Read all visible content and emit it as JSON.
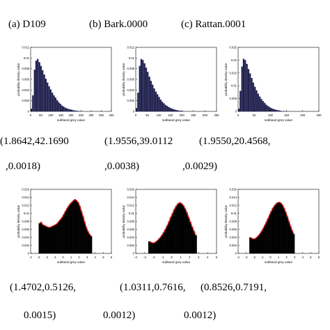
{
  "captions": [
    "(a) D109",
    "(b) Bark.0000",
    "(c) Rattan.0001"
  ],
  "params_top": [
    {
      "line1": "(1.8642,42.1690",
      "line2": ",0.0018)"
    },
    {
      "line1": "(1.9556,39.0112",
      "line2": ",0.0038)"
    },
    {
      "line1": "(1.9550,20.4568,",
      "line2": ",0.0029)"
    }
  ],
  "params_bottom": [
    {
      "line1": "(1.4702,0.5126,",
      "line2": "0.0015)"
    },
    {
      "line1": "(1.0311,0.7616,",
      "line2": "0.0012)"
    },
    {
      "line1": "(0.8526,0.7191,",
      "line2": "0.0012)"
    }
  ],
  "colors": {
    "bar_top": "#1a1a40",
    "bar_bottom": "#000000",
    "fit": "#e8201c"
  },
  "chart_data": [
    {
      "type": "bar",
      "title": "",
      "xlabel": "subband grey value",
      "ylabel": "probability density value",
      "xlim": [
        0,
        400
      ],
      "ylim": [
        0,
        0.012
      ],
      "xticks": [
        0,
        50,
        100,
        150,
        200,
        250,
        300,
        350,
        400
      ],
      "yticks": [
        0,
        0.002,
        0.004,
        0.006,
        0.008,
        0.01,
        0.012
      ],
      "ytick_labels": [
        "0",
        "0.002",
        "0.004",
        "0.006",
        "0.008",
        "0.01",
        "0.012"
      ],
      "fit": false,
      "bins": [
        {
          "x": 0,
          "y": 0.0005
        },
        {
          "x": 8,
          "y": 0.003
        },
        {
          "x": 16,
          "y": 0.0078
        },
        {
          "x": 24,
          "y": 0.0095
        },
        {
          "x": 32,
          "y": 0.0098
        },
        {
          "x": 40,
          "y": 0.0092
        },
        {
          "x": 48,
          "y": 0.0085
        },
        {
          "x": 56,
          "y": 0.0077
        },
        {
          "x": 64,
          "y": 0.0069
        },
        {
          "x": 72,
          "y": 0.0061
        },
        {
          "x": 80,
          "y": 0.0054
        },
        {
          "x": 88,
          "y": 0.0047
        },
        {
          "x": 96,
          "y": 0.0041
        },
        {
          "x": 104,
          "y": 0.0035
        },
        {
          "x": 112,
          "y": 0.003
        },
        {
          "x": 120,
          "y": 0.0026
        },
        {
          "x": 128,
          "y": 0.0021
        },
        {
          "x": 136,
          "y": 0.0017
        },
        {
          "x": 144,
          "y": 0.0014
        },
        {
          "x": 152,
          "y": 0.0011
        },
        {
          "x": 160,
          "y": 0.0009
        },
        {
          "x": 168,
          "y": 0.0007
        },
        {
          "x": 176,
          "y": 0.00055
        },
        {
          "x": 184,
          "y": 0.00045
        },
        {
          "x": 192,
          "y": 0.00035
        },
        {
          "x": 200,
          "y": 0.00028
        },
        {
          "x": 208,
          "y": 0.0002
        },
        {
          "x": 216,
          "y": 0.00015
        },
        {
          "x": 224,
          "y": 0.0001
        },
        {
          "x": 232,
          "y": 7e-05
        },
        {
          "x": 240,
          "y": 5e-05
        },
        {
          "x": 250,
          "y": 3e-05
        }
      ]
    },
    {
      "type": "bar",
      "title": "",
      "xlabel": "subband grey value",
      "ylabel": "probability density value",
      "xlim": [
        0,
        350
      ],
      "ylim": [
        0,
        0.012
      ],
      "xticks": [
        0,
        50,
        100,
        150,
        200,
        250,
        300,
        350
      ],
      "yticks": [
        0,
        0.002,
        0.004,
        0.006,
        0.008,
        0.01,
        0.012
      ],
      "ytick_labels": [
        "0",
        "0.002",
        "0.004",
        "0.006",
        "0.008",
        "0.01",
        "0.012"
      ],
      "fit": false,
      "bins": [
        {
          "x": 0,
          "y": 0.0006
        },
        {
          "x": 7,
          "y": 0.0035
        },
        {
          "x": 14,
          "y": 0.0085
        },
        {
          "x": 21,
          "y": 0.0098
        },
        {
          "x": 28,
          "y": 0.0096
        },
        {
          "x": 35,
          "y": 0.009
        },
        {
          "x": 42,
          "y": 0.0082
        },
        {
          "x": 49,
          "y": 0.0074
        },
        {
          "x": 56,
          "y": 0.0065
        },
        {
          "x": 63,
          "y": 0.0057
        },
        {
          "x": 70,
          "y": 0.005
        },
        {
          "x": 77,
          "y": 0.0043
        },
        {
          "x": 84,
          "y": 0.0037
        },
        {
          "x": 91,
          "y": 0.0032
        },
        {
          "x": 98,
          "y": 0.0027
        },
        {
          "x": 105,
          "y": 0.0022
        },
        {
          "x": 112,
          "y": 0.0018
        },
        {
          "x": 119,
          "y": 0.0015
        },
        {
          "x": 126,
          "y": 0.0012
        },
        {
          "x": 133,
          "y": 0.001
        },
        {
          "x": 140,
          "y": 0.0008
        },
        {
          "x": 147,
          "y": 0.00065
        },
        {
          "x": 154,
          "y": 0.0005
        },
        {
          "x": 161,
          "y": 0.0004
        },
        {
          "x": 168,
          "y": 0.0003
        },
        {
          "x": 175,
          "y": 0.00022
        },
        {
          "x": 182,
          "y": 0.00016
        },
        {
          "x": 189,
          "y": 0.00011
        },
        {
          "x": 196,
          "y": 8e-05
        },
        {
          "x": 203,
          "y": 5e-05
        }
      ]
    },
    {
      "type": "bar",
      "title": "",
      "xlabel": "subband grey value",
      "ylabel": "probability density value",
      "xlim": [
        0,
        250
      ],
      "ylim": [
        0,
        0.025
      ],
      "xticks": [
        0,
        50,
        100,
        150,
        200,
        250
      ],
      "yticks": [
        0,
        0.005,
        0.01,
        0.015,
        0.02,
        0.025
      ],
      "ytick_labels": [
        "0",
        "0.005",
        "0.01",
        "0.015",
        "0.02",
        "0.025"
      ],
      "fit": false,
      "bins": [
        {
          "x": 0,
          "y": 0.001
        },
        {
          "x": 5,
          "y": 0.008
        },
        {
          "x": 10,
          "y": 0.0175
        },
        {
          "x": 15,
          "y": 0.0205
        },
        {
          "x": 20,
          "y": 0.02
        },
        {
          "x": 25,
          "y": 0.0185
        },
        {
          "x": 30,
          "y": 0.0165
        },
        {
          "x": 35,
          "y": 0.0148
        },
        {
          "x": 40,
          "y": 0.013
        },
        {
          "x": 45,
          "y": 0.0112
        },
        {
          "x": 50,
          "y": 0.0096
        },
        {
          "x": 55,
          "y": 0.0082
        },
        {
          "x": 60,
          "y": 0.0069
        },
        {
          "x": 65,
          "y": 0.0058
        },
        {
          "x": 70,
          "y": 0.0048
        },
        {
          "x": 75,
          "y": 0.004
        },
        {
          "x": 80,
          "y": 0.0033
        },
        {
          "x": 85,
          "y": 0.0026
        },
        {
          "x": 90,
          "y": 0.0021
        },
        {
          "x": 95,
          "y": 0.0017
        },
        {
          "x": 100,
          "y": 0.0013
        },
        {
          "x": 105,
          "y": 0.001
        },
        {
          "x": 110,
          "y": 0.0008
        },
        {
          "x": 115,
          "y": 0.0006
        },
        {
          "x": 120,
          "y": 0.00045
        },
        {
          "x": 125,
          "y": 0.00035
        },
        {
          "x": 130,
          "y": 0.00025
        },
        {
          "x": 140,
          "y": 0.00015
        },
        {
          "x": 150,
          "y": 8e-05
        },
        {
          "x": 160,
          "y": 4e-05
        }
      ]
    },
    {
      "type": "bar",
      "title": "",
      "xlabel": "subband grey value",
      "ylabel": "probability density value",
      "xlim": [
        -4,
        6
      ],
      "ylim": [
        0,
        0.016
      ],
      "xticks": [
        -4,
        -3,
        -2,
        -1,
        0,
        1,
        2,
        3,
        4,
        5,
        6
      ],
      "yticks": [
        0,
        0.002,
        0.004,
        0.006,
        0.008,
        0.01,
        0.012,
        0.014,
        0.016
      ],
      "ytick_labels": [
        "0",
        "0.002",
        "0.004",
        "0.006",
        "0.008",
        "0.01",
        "0.012",
        "0.014",
        "0.016"
      ],
      "fit": true,
      "bins": [
        {
          "x": -3.0,
          "y": 0.0075
        },
        {
          "x": -2.8,
          "y": 0.0078
        },
        {
          "x": -2.6,
          "y": 0.0072
        },
        {
          "x": -2.4,
          "y": 0.007
        },
        {
          "x": -2.2,
          "y": 0.0068
        },
        {
          "x": -2.0,
          "y": 0.0066
        },
        {
          "x": -1.8,
          "y": 0.0065
        },
        {
          "x": -1.6,
          "y": 0.0066
        },
        {
          "x": -1.4,
          "y": 0.0068
        },
        {
          "x": -1.2,
          "y": 0.007
        },
        {
          "x": -1.0,
          "y": 0.0072
        },
        {
          "x": -0.8,
          "y": 0.0075
        },
        {
          "x": -0.6,
          "y": 0.008
        },
        {
          "x": -0.4,
          "y": 0.0085
        },
        {
          "x": -0.2,
          "y": 0.009
        },
        {
          "x": 0.0,
          "y": 0.0097
        },
        {
          "x": 0.2,
          "y": 0.0105
        },
        {
          "x": 0.4,
          "y": 0.0112
        },
        {
          "x": 0.6,
          "y": 0.0118
        },
        {
          "x": 0.8,
          "y": 0.0124
        },
        {
          "x": 1.0,
          "y": 0.0128
        },
        {
          "x": 1.2,
          "y": 0.0132
        },
        {
          "x": 1.4,
          "y": 0.0135
        },
        {
          "x": 1.6,
          "y": 0.0132
        },
        {
          "x": 1.8,
          "y": 0.0127
        },
        {
          "x": 2.0,
          "y": 0.0118
        },
        {
          "x": 2.2,
          "y": 0.0105
        },
        {
          "x": 2.4,
          "y": 0.0092
        },
        {
          "x": 2.6,
          "y": 0.0078
        },
        {
          "x": 2.8,
          "y": 0.0065
        },
        {
          "x": 3.0,
          "y": 0.0055
        },
        {
          "x": 3.2,
          "y": 0.0048
        },
        {
          "x": 3.4,
          "y": 0.0043
        }
      ]
    },
    {
      "type": "bar",
      "title": "",
      "xlabel": "subband grey value",
      "ylabel": "probability density value",
      "xlim": [
        -4,
        5
      ],
      "ylim": [
        0,
        0.016
      ],
      "xticks": [
        -4,
        -3,
        -2,
        -1,
        0,
        1,
        2,
        3,
        4,
        5
      ],
      "yticks": [
        0,
        0.002,
        0.004,
        0.006,
        0.008,
        0.01,
        0.012,
        0.014,
        0.016
      ],
      "ytick_labels": [
        "0",
        "0.002",
        "0.004",
        "0.006",
        "0.008",
        "0.01",
        "0.012",
        "0.014",
        "0.016"
      ],
      "fit": true,
      "bins": [
        {
          "x": -2.6,
          "y": 0.003
        },
        {
          "x": -2.4,
          "y": 0.0028
        },
        {
          "x": -2.2,
          "y": 0.0026
        },
        {
          "x": -2.0,
          "y": 0.0027
        },
        {
          "x": -1.8,
          "y": 0.003
        },
        {
          "x": -1.6,
          "y": 0.0034
        },
        {
          "x": -1.4,
          "y": 0.0039
        },
        {
          "x": -1.2,
          "y": 0.0045
        },
        {
          "x": -1.0,
          "y": 0.0052
        },
        {
          "x": -0.8,
          "y": 0.006
        },
        {
          "x": -0.6,
          "y": 0.0069
        },
        {
          "x": -0.4,
          "y": 0.0079
        },
        {
          "x": -0.2,
          "y": 0.009
        },
        {
          "x": 0.0,
          "y": 0.01
        },
        {
          "x": 0.2,
          "y": 0.011
        },
        {
          "x": 0.4,
          "y": 0.0118
        },
        {
          "x": 0.6,
          "y": 0.0124
        },
        {
          "x": 0.8,
          "y": 0.0127
        },
        {
          "x": 1.0,
          "y": 0.0125
        },
        {
          "x": 1.2,
          "y": 0.012
        },
        {
          "x": 1.4,
          "y": 0.0112
        },
        {
          "x": 1.6,
          "y": 0.0102
        },
        {
          "x": 1.8,
          "y": 0.009
        },
        {
          "x": 2.0,
          "y": 0.0078
        },
        {
          "x": 2.2,
          "y": 0.0066
        },
        {
          "x": 2.4,
          "y": 0.0055
        },
        {
          "x": 2.6,
          "y": 0.0045
        }
      ]
    },
    {
      "type": "bar",
      "title": "",
      "xlabel": "subband grey value",
      "ylabel": "probability density value",
      "xlim": [
        -4,
        6
      ],
      "ylim": [
        0,
        0.016
      ],
      "xticks": [
        -4,
        -3,
        -2,
        -1,
        0,
        1,
        2,
        3,
        4,
        5,
        6
      ],
      "yticks": [
        0,
        0.002,
        0.004,
        0.006,
        0.008,
        0.01,
        0.012,
        0.014,
        0.016
      ],
      "ytick_labels": [
        "0",
        "0.002",
        "0.004",
        "0.006",
        "0.008",
        "0.01",
        "0.012",
        "0.014",
        "0.016"
      ],
      "fit": true,
      "bins": [
        {
          "x": -2.6,
          "y": 0.004
        },
        {
          "x": -2.4,
          "y": 0.0038
        },
        {
          "x": -2.2,
          "y": 0.0036
        },
        {
          "x": -2.0,
          "y": 0.0037
        },
        {
          "x": -1.8,
          "y": 0.004
        },
        {
          "x": -1.6,
          "y": 0.0044
        },
        {
          "x": -1.4,
          "y": 0.0049
        },
        {
          "x": -1.2,
          "y": 0.0055
        },
        {
          "x": -1.0,
          "y": 0.0062
        },
        {
          "x": -0.8,
          "y": 0.007
        },
        {
          "x": -0.6,
          "y": 0.0078
        },
        {
          "x": -0.4,
          "y": 0.0087
        },
        {
          "x": -0.2,
          "y": 0.0096
        },
        {
          "x": 0.0,
          "y": 0.0105
        },
        {
          "x": 0.2,
          "y": 0.0113
        },
        {
          "x": 0.4,
          "y": 0.0119
        },
        {
          "x": 0.6,
          "y": 0.0124
        },
        {
          "x": 0.8,
          "y": 0.0127
        },
        {
          "x": 1.0,
          "y": 0.0128
        },
        {
          "x": 1.2,
          "y": 0.0126
        },
        {
          "x": 1.4,
          "y": 0.0121
        },
        {
          "x": 1.6,
          "y": 0.0113
        },
        {
          "x": 1.8,
          "y": 0.0103
        },
        {
          "x": 2.0,
          "y": 0.0092
        },
        {
          "x": 2.2,
          "y": 0.008
        },
        {
          "x": 2.4,
          "y": 0.0068
        },
        {
          "x": 2.6,
          "y": 0.0057
        },
        {
          "x": 2.8,
          "y": 0.0048
        }
      ]
    }
  ]
}
